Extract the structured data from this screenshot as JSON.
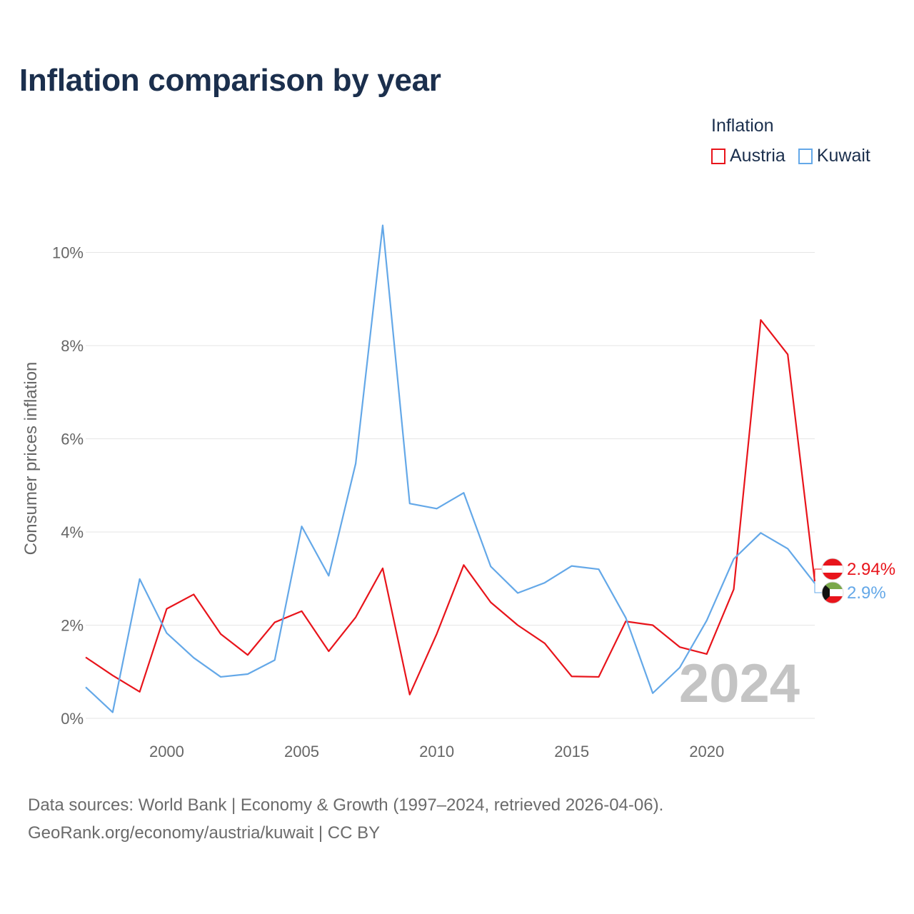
{
  "title": "Inflation comparison by year",
  "legend": {
    "title": "Inflation",
    "items": [
      {
        "label": "Austria",
        "color": "#e8141b"
      },
      {
        "label": "Kuwait",
        "color": "#64a8e8"
      }
    ]
  },
  "sources": {
    "line1": "Data sources: World Bank | Economy & Growth (1997–2024, retrieved 2026-04-06).",
    "line2": "GeoRank.org/economy/austria/kuwait | CC BY"
  },
  "chart_data": {
    "type": "line",
    "title": "Inflation comparison by year",
    "xlabel": "",
    "ylabel": "Consumer prices inflation",
    "watermark": "2024",
    "xlim": [
      1997,
      2024
    ],
    "ylim": [
      0,
      10.5
    ],
    "x_ticks": [
      2000,
      2005,
      2010,
      2015,
      2020
    ],
    "y_ticks": [
      0,
      2,
      4,
      6,
      8,
      10
    ],
    "y_tick_labels": [
      "0%",
      "2%",
      "4%",
      "6%",
      "8%",
      "10%"
    ],
    "x": [
      1997,
      1998,
      1999,
      2000,
      2001,
      2002,
      2003,
      2004,
      2005,
      2006,
      2007,
      2008,
      2009,
      2010,
      2011,
      2012,
      2013,
      2014,
      2015,
      2016,
      2017,
      2018,
      2019,
      2020,
      2021,
      2022,
      2023,
      2024
    ],
    "series": [
      {
        "name": "Austria",
        "color": "#e8141b",
        "end_label": "2.94%",
        "flag": "austria-flag-icon",
        "values": [
          1.31,
          0.92,
          0.57,
          2.35,
          2.66,
          1.81,
          1.36,
          2.06,
          2.3,
          1.44,
          2.17,
          3.22,
          0.51,
          1.81,
          3.29,
          2.49,
          2.0,
          1.61,
          0.9,
          0.89,
          2.08,
          2.0,
          1.53,
          1.38,
          2.77,
          8.55,
          7.81,
          2.94
        ]
      },
      {
        "name": "Kuwait",
        "color": "#64a8e8",
        "end_label": "2.9%",
        "flag": "kuwait-flag-icon",
        "values": [
          0.67,
          0.13,
          2.99,
          1.83,
          1.3,
          0.89,
          0.95,
          1.25,
          4.12,
          3.06,
          5.47,
          10.58,
          4.61,
          4.5,
          4.84,
          3.26,
          2.69,
          2.91,
          3.27,
          3.2,
          2.16,
          0.54,
          1.09,
          2.1,
          3.42,
          3.98,
          3.64,
          2.9
        ]
      }
    ]
  }
}
